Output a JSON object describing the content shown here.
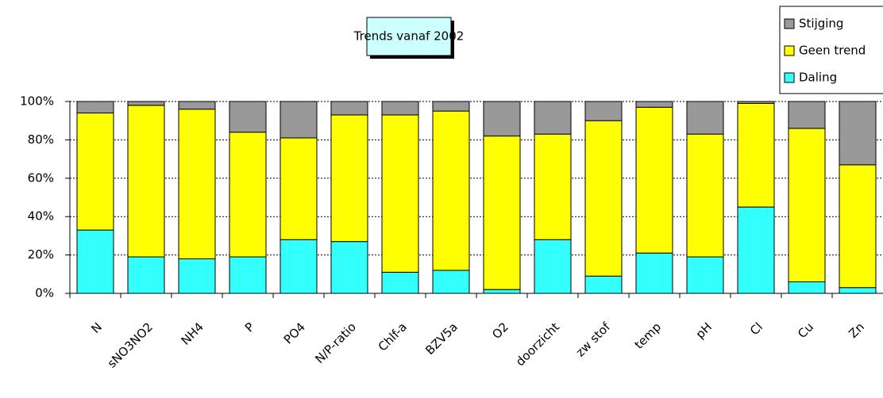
{
  "chart_data": {
    "type": "stacked_bar",
    "title": "Trends vanaf 2002",
    "categories": [
      "N",
      "sNO3NO2",
      "NH4",
      "P",
      "PO4",
      "N/P-ratio",
      "Chlf-a",
      "BZV5a",
      "O2",
      "doorzicht",
      "zw stof",
      "temp",
      "pH",
      "Cl",
      "Cu",
      "Zn"
    ],
    "series": [
      {
        "name": "Daling",
        "color": "#33ffff",
        "values": [
          33,
          19,
          18,
          19,
          28,
          27,
          11,
          12,
          2,
          28,
          9,
          21,
          19,
          45,
          6,
          3
        ]
      },
      {
        "name": "Geen trend",
        "color": "#ffff00",
        "values": [
          61,
          79,
          78,
          65,
          53,
          66,
          82,
          83,
          80,
          55,
          81,
          76,
          64,
          54,
          80,
          64
        ]
      },
      {
        "name": "Stijging",
        "color": "#999999",
        "values": [
          6,
          2,
          4,
          16,
          19,
          7,
          7,
          5,
          18,
          17,
          10,
          3,
          17,
          1,
          14,
          33
        ]
      }
    ],
    "ylim": [
      0,
      100
    ],
    "yticks": [
      {
        "value": 0,
        "label": "0%"
      },
      {
        "value": 20,
        "label": "20%"
      },
      {
        "value": 40,
        "label": "40%"
      },
      {
        "value": 60,
        "label": "60%"
      },
      {
        "value": 80,
        "label": "80%"
      },
      {
        "value": 100,
        "label": "100%"
      }
    ],
    "grid": true,
    "legend": "top-right"
  }
}
